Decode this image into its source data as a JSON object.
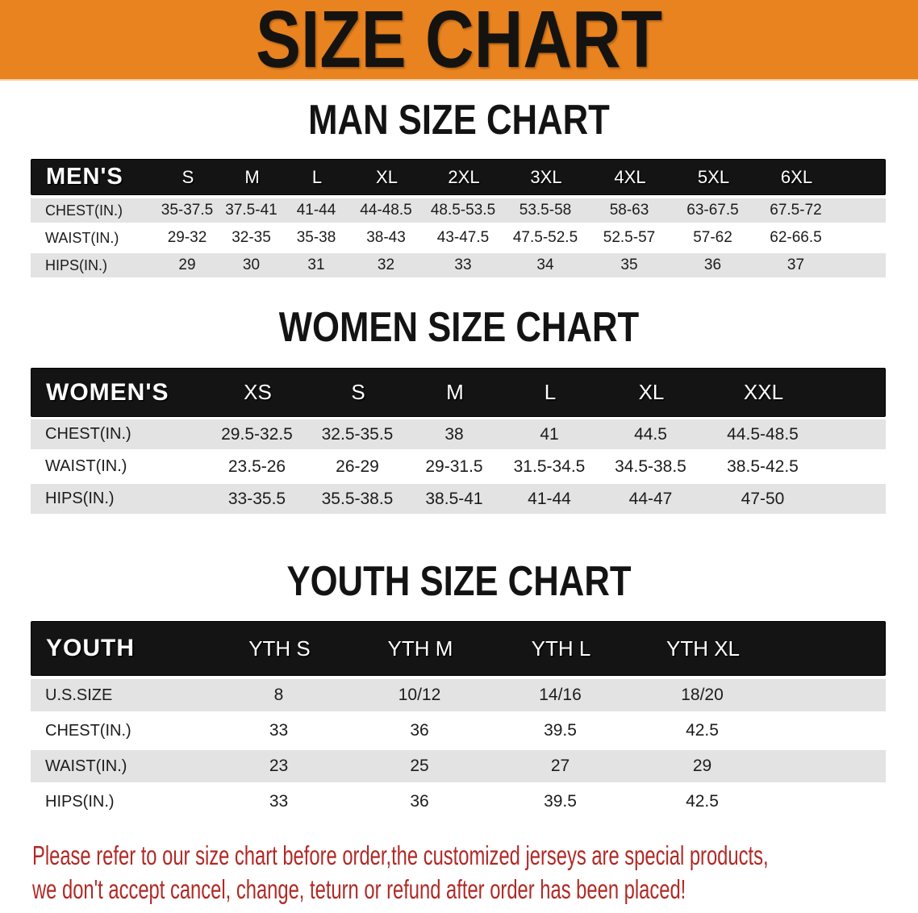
{
  "banner": {
    "title": "SIZE CHART"
  },
  "sections": [
    {
      "heading": "MAN SIZE CHART",
      "table": {
        "label": "MEN'S",
        "columns": [
          "S",
          "M",
          "L",
          "XL",
          "2XL",
          "3XL",
          "4XL",
          "5XL",
          "6XL"
        ],
        "rows": [
          {
            "label": "CHEST(IN.)",
            "values": [
              "35-37.5",
              "37.5-41",
              "41-44",
              "44-48.5",
              "48.5-53.5",
              "53.5-58",
              "58-63",
              "63-67.5",
              "67.5-72"
            ]
          },
          {
            "label": "WAIST(IN.)",
            "values": [
              "29-32",
              "32-35",
              "35-38",
              "38-43",
              "43-47.5",
              "47.5-52.5",
              "52.5-57",
              "57-62",
              "62-66.5"
            ]
          },
          {
            "label": "HIPS(IN.)",
            "values": [
              "29",
              "30",
              "31",
              "32",
              "33",
              "34",
              "35",
              "36",
              "37"
            ]
          }
        ]
      }
    },
    {
      "heading": "WOMEN SIZE CHART",
      "table": {
        "label": "WOMEN'S",
        "columns": [
          "XS",
          "S",
          "M",
          "L",
          "XL",
          "XXL"
        ],
        "rows": [
          {
            "label": "CHEST(IN.)",
            "values": [
              "29.5-32.5",
              "32.5-35.5",
              "38",
              "41",
              "44.5",
              "44.5-48.5"
            ]
          },
          {
            "label": "WAIST(IN.)",
            "values": [
              "23.5-26",
              "26-29",
              "29-31.5",
              "31.5-34.5",
              "34.5-38.5",
              "38.5-42.5"
            ]
          },
          {
            "label": "HIPS(IN.)",
            "values": [
              "33-35.5",
              "35.5-38.5",
              "38.5-41",
              "41-44",
              "44-47",
              "47-50"
            ]
          }
        ]
      }
    },
    {
      "heading": "YOUTH SIZE CHART",
      "table": {
        "label": "YOUTH",
        "columns": [
          "YTH S",
          "YTH M",
          "YTH L",
          "YTH XL"
        ],
        "rows": [
          {
            "label": "U.S.SIZE",
            "values": [
              "8",
              "10/12",
              "14/16",
              "18/20"
            ]
          },
          {
            "label": "CHEST(IN.)",
            "values": [
              "33",
              "36",
              "39.5",
              "42.5"
            ]
          },
          {
            "label": "WAIST(IN.)",
            "values": [
              "23",
              "25",
              "27",
              "29"
            ]
          },
          {
            "label": "HIPS(IN.)",
            "values": [
              "33",
              "36",
              "39.5",
              "42.5"
            ]
          }
        ]
      }
    }
  ],
  "note": {
    "lines": [
      "Please refer to our size chart before order,the customized jerseys are special products,",
      "we don't accept cancel, change, teturn or refund after order has been placed!"
    ]
  },
  "colors": {
    "banner_orange": "#E8831F",
    "header_black": "#141414",
    "row_gray": "#e3e3e4",
    "note_red": "#B02A26"
  }
}
